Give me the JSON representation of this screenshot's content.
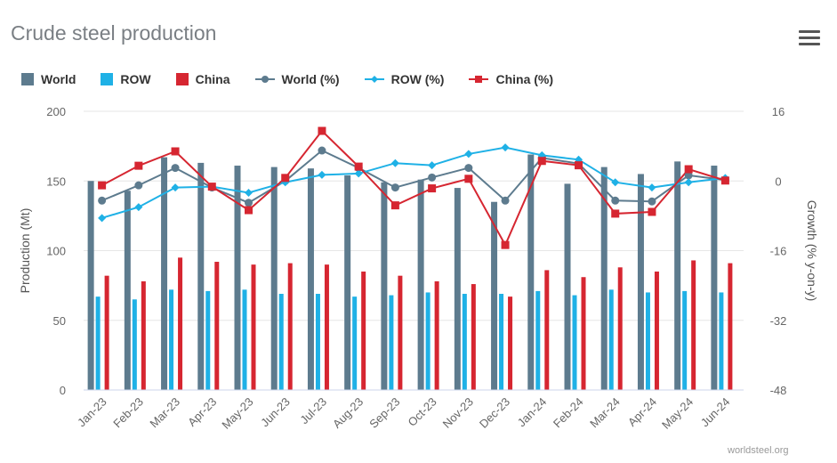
{
  "header": {
    "title": "Crude steel production",
    "menu_icon": "hamburger-menu-icon"
  },
  "credit": "worldsteel.org",
  "colors": {
    "world": "#5d7b8e",
    "row": "#1fb1e6",
    "china": "#d62631",
    "grid": "#e6e6e6",
    "axis_text": "#666666"
  },
  "chart_data": {
    "type": "bar",
    "title": "Crude steel production",
    "ylabel": "Production (Mt)",
    "y2label": "Growth (% y-on-y)",
    "ylim": [
      0,
      200
    ],
    "y2lim": [
      -48,
      16
    ],
    "yticks": [
      "200",
      "150",
      "100",
      "50",
      "0"
    ],
    "y2ticks": [
      "16",
      "0",
      "-16",
      "-32",
      "-48"
    ],
    "categories": [
      "Jan-23",
      "Feb-23",
      "Mar-23",
      "Apr-23",
      "May-23",
      "Jun-23",
      "Jul-23",
      "Aug-23",
      "Sep-23",
      "Oct-23",
      "Nov-23",
      "Dec-23",
      "Jan-24",
      "Feb-24",
      "Mar-24",
      "Apr-24",
      "May-24",
      "Jun-24"
    ],
    "bar_series": [
      {
        "name": "World",
        "values": [
          150,
          143,
          167,
          163,
          161,
          160,
          159,
          154,
          149,
          151,
          145,
          135,
          169,
          148,
          160,
          155,
          164,
          161
        ]
      },
      {
        "name": "ROW",
        "values": [
          67,
          65,
          72,
          71,
          72,
          69,
          69,
          67,
          68,
          70,
          69,
          69,
          71,
          68,
          72,
          70,
          71,
          70
        ]
      },
      {
        "name": "China",
        "values": [
          82,
          78,
          95,
          92,
          90,
          91,
          90,
          85,
          82,
          78,
          76,
          67,
          86,
          81,
          88,
          85,
          93,
          91
        ]
      }
    ],
    "line_series": [
      {
        "name": "World (%)",
        "values": [
          -4.5,
          -1,
          3,
          -1.5,
          -5,
          0,
          7,
          3,
          -1.5,
          0.8,
          3,
          -4.5,
          5.3,
          4,
          -4.5,
          -4.7,
          1.3,
          0.2
        ]
      },
      {
        "name": "ROW (%)",
        "values": [
          -8.5,
          -6,
          -1.5,
          -1.3,
          -2.7,
          -0.3,
          1.4,
          1.7,
          4.1,
          3.6,
          6.2,
          7.7,
          5.9,
          4.9,
          -0.3,
          -1.5,
          -0.3,
          0.7
        ]
      },
      {
        "name": "China (%)",
        "values": [
          -1,
          3.5,
          6.8,
          -1.3,
          -6.7,
          0.7,
          11.5,
          3.3,
          -5.6,
          -1.7,
          0.5,
          -14.7,
          4.6,
          3.6,
          -7.5,
          -7.1,
          2.7,
          0.1
        ]
      }
    ],
    "legend": [
      "World",
      "ROW",
      "China",
      "World (%)",
      "ROW (%)",
      "China (%)"
    ],
    "legend_position": "top-left"
  }
}
